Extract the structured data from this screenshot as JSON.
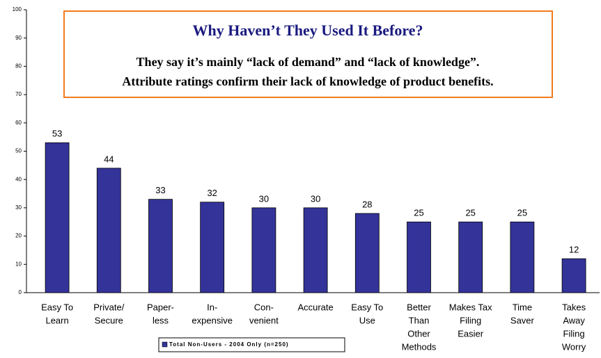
{
  "chart_data": {
    "type": "bar",
    "title": "Why Haven’t They Used It Before?",
    "subtitle": [
      "They say it’s mainly “lack of demand” and “lack of knowledge”.",
      "Attribute ratings confirm their lack of knowledge of product benefits."
    ],
    "categories": [
      [
        "Easy To",
        "Learn"
      ],
      [
        "Private/",
        "Secure"
      ],
      [
        "Paper-",
        "less"
      ],
      [
        "In-",
        "expensive"
      ],
      [
        "Con-",
        "venient"
      ],
      [
        "Accurate"
      ],
      [
        "Easy To",
        "Use"
      ],
      [
        "Better",
        "Than",
        "Other",
        "Methods"
      ],
      [
        "Makes Tax",
        "Filing",
        "Easier"
      ],
      [
        "Time",
        "Saver"
      ],
      [
        "Takes",
        "Away",
        "Filing",
        "Worry"
      ]
    ],
    "series": [
      {
        "name": "Total Non-Users - 2004 Only (n=250)",
        "color": "#333399",
        "values": [
          53,
          44,
          33,
          32,
          30,
          30,
          28,
          25,
          25,
          25,
          12
        ]
      }
    ],
    "ylim": [
      0,
      100
    ],
    "yticks": [
      0,
      10,
      20,
      30,
      40,
      50,
      60,
      70,
      80,
      90,
      100
    ],
    "grid": false
  }
}
